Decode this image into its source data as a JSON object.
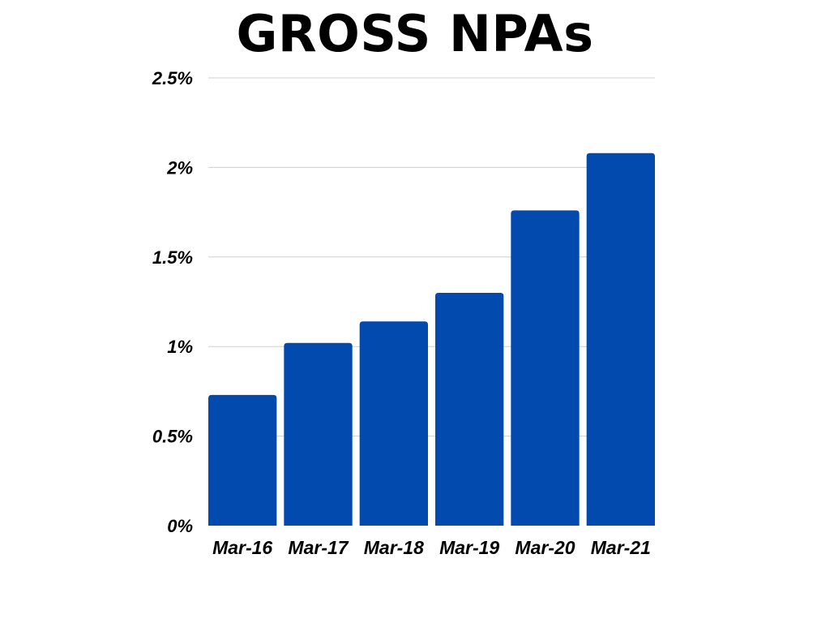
{
  "chart_data": {
    "type": "bar",
    "title": "GROSS NPAs",
    "categories": [
      "Mar-16",
      "Mar-17",
      "Mar-18",
      "Mar-19",
      "Mar-20",
      "Mar-21"
    ],
    "values": [
      0.73,
      1.02,
      1.14,
      1.3,
      1.76,
      2.08
    ],
    "unit": "%",
    "ylim": [
      0,
      2.5
    ],
    "yticks": [
      {
        "value": 0,
        "label": "0%"
      },
      {
        "value": 0.5,
        "label": "0.5%"
      },
      {
        "value": 1,
        "label": "1%"
      },
      {
        "value": 1.5,
        "label": "1.5%"
      },
      {
        "value": 2,
        "label": "2%"
      },
      {
        "value": 2.5,
        "label": "2.5%"
      }
    ],
    "xlabel": "",
    "ylabel": "",
    "grid": true,
    "legend": "none",
    "colors": {
      "bar": "#024aad",
      "grid": "#cfcfcf",
      "text": "#000000"
    }
  }
}
